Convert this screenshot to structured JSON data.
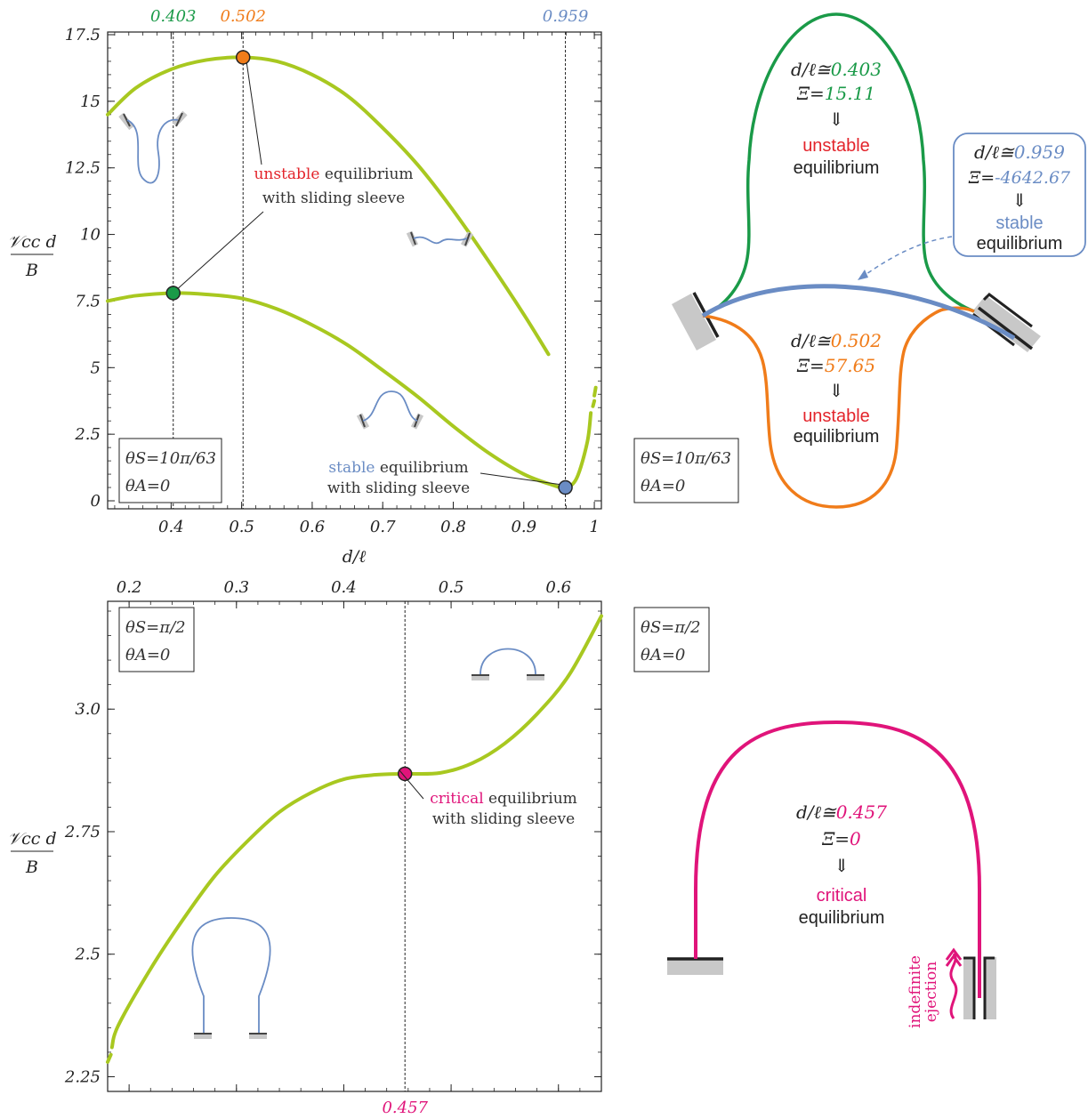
{
  "colors": {
    "curve": "#a8c820",
    "green": "#1a9a48",
    "orange": "#f07c1a",
    "blue": "#6a8cc4",
    "magenta": "#e0147a",
    "red": "#e3242b",
    "text": "#333333",
    "clamp": "#c8c8c8"
  },
  "chart_data": [
    {
      "type": "line",
      "xlabel": "d/ℓ",
      "ylabel_num": "𝒱cc d",
      "ylabel_den": "B",
      "xlim": [
        0.31,
        1.01
      ],
      "ylim": [
        -0.3,
        17.6
      ],
      "x_ticks": [
        "0.4",
        "0.5",
        "0.6",
        "0.7",
        "0.8",
        "0.9",
        "1"
      ],
      "y_ticks": [
        "0",
        "2.5",
        "5",
        "7.5",
        "10",
        "12.5",
        "15",
        "17.5"
      ],
      "top_labels": [
        {
          "x": 0.403,
          "text": "0.403",
          "color": "green"
        },
        {
          "x": 0.502,
          "text": "0.502",
          "color": "orange"
        },
        {
          "x": 0.959,
          "text": "0.959",
          "color": "blue"
        }
      ],
      "series": [
        {
          "x": [
            0.31,
            0.35,
            0.4,
            0.45,
            0.502,
            0.55,
            0.6,
            0.65,
            0.7,
            0.75,
            0.8,
            0.85,
            0.9,
            0.935
          ],
          "y": [
            14.5,
            15.5,
            16.2,
            16.55,
            16.65,
            16.5,
            16.0,
            15.2,
            14.0,
            12.6,
            10.9,
            9.0,
            7.0,
            5.5
          ]
        },
        {
          "x": [
            0.31,
            0.35,
            0.403,
            0.45,
            0.5,
            0.55,
            0.6,
            0.65,
            0.7,
            0.75,
            0.8,
            0.85,
            0.9,
            0.94,
            0.959,
            0.975,
            0.99,
            0.995
          ],
          "y": [
            7.5,
            7.7,
            7.8,
            7.75,
            7.6,
            7.2,
            6.6,
            5.85,
            4.9,
            3.9,
            2.8,
            1.8,
            1.0,
            0.6,
            0.5,
            0.85,
            2.2,
            3.3
          ]
        },
        {
          "x": [
            0.998,
            1.0
          ],
          "y": [
            3.55,
            3.75
          ]
        },
        {
          "x": [
            1.0,
            1.002
          ],
          "y": [
            3.95,
            4.25
          ]
        }
      ],
      "points": [
        {
          "x": 0.502,
          "y": 16.65,
          "color": "orange"
        },
        {
          "x": 0.403,
          "y": 7.8,
          "color": "green"
        },
        {
          "x": 0.959,
          "y": 0.5,
          "color": "blue"
        }
      ],
      "annotations": {
        "unstable_word": "unstable",
        "unstable_rest": " equilibrium",
        "unstable_line2": "with sliding sleeve",
        "stable_word": "stable",
        "stable_rest": " equilibrium",
        "stable_line2": "with sliding sleeve"
      },
      "legend_box": {
        "line1": "θS=10π/63",
        "line2": "θA=0"
      }
    },
    {
      "type": "line",
      "xlim": [
        0.18,
        0.64
      ],
      "ylim": [
        2.22,
        3.22
      ],
      "x_ticks_top": [
        "0.2",
        "0.3",
        "0.4",
        "0.5",
        "0.6"
      ],
      "y_ticks": [
        "2.25",
        "2.5",
        "2.75",
        "3.0"
      ],
      "ylabel_num": "𝒱cc d",
      "ylabel_den": "B",
      "bottom_label": {
        "x": 0.457,
        "text": "0.457"
      },
      "series": [
        {
          "x": [
            0.184,
            0.19,
            0.22,
            0.25,
            0.28,
            0.31,
            0.34,
            0.37,
            0.4,
            0.43,
            0.457,
            0.49,
            0.52,
            0.55,
            0.58,
            0.61,
            0.64
          ],
          "y": [
            2.31,
            2.355,
            2.47,
            2.57,
            2.66,
            2.73,
            2.79,
            2.83,
            2.857,
            2.866,
            2.868,
            2.87,
            2.89,
            2.93,
            2.99,
            3.07,
            3.19
          ]
        },
        {
          "x": [
            0.18,
            0.183
          ],
          "y": [
            2.28,
            2.295
          ]
        }
      ],
      "points": [
        {
          "x": 0.457,
          "y": 2.868,
          "color": "magenta"
        }
      ],
      "annotations": {
        "critical_word": "critical",
        "critical_rest": " equilibrium",
        "critical_line2": "with sliding sleeve"
      },
      "legend_box": {
        "line1": "θS=π/2",
        "line2": "θA=0"
      }
    }
  ],
  "diagram_top": {
    "green_label": {
      "prefix": "d/ℓ≅",
      "value": "0.403",
      "xi_prefix": "Ξ=",
      "xi_value": "15.11",
      "arrow": "⇓",
      "state": "unstable",
      "word": "equilibrium"
    },
    "orange_label": {
      "prefix": "d/ℓ≅",
      "value": "0.502",
      "xi_prefix": "Ξ=",
      "xi_value": "57.65",
      "arrow": "⇓",
      "state": "unstable",
      "word": "equilibrium"
    },
    "blue_label": {
      "prefix": "d/ℓ≅",
      "value": "0.959",
      "xi_prefix": "Ξ=",
      "xi_value": "-4642.67",
      "arrow": "⇓",
      "state": "stable",
      "word": "equilibrium"
    },
    "legend_box": {
      "line1": "θS=10π/63",
      "line2": "θA=0"
    }
  },
  "diagram_bottom": {
    "label": {
      "prefix": "d/ℓ≅",
      "value": "0.457",
      "xi_prefix": "Ξ=",
      "xi_value": "0",
      "arrow": "⇓",
      "state": "critical",
      "word": "equilibrium"
    },
    "ejection_line1": "indefinite",
    "ejection_line2": "ejection",
    "legend_box": {
      "line1": "θS=π/2",
      "line2": "θA=0"
    }
  }
}
